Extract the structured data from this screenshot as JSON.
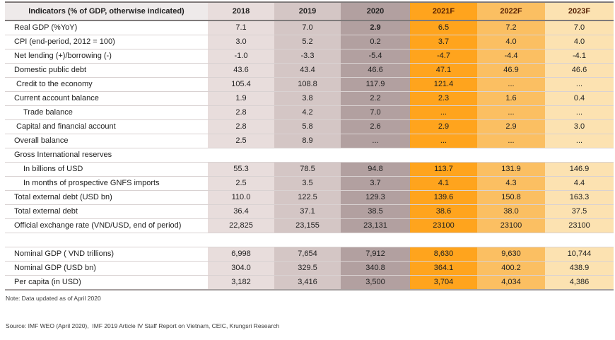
{
  "colors": {
    "c2018": "#e8dddc",
    "c2019": "#d4c6c5",
    "c2020": "#b2a0a0",
    "c2021f": "#ffa41d",
    "c2022f": "#fbbf62",
    "c2023f": "#fce2b1",
    "headerLabelBg": "#eeeaea",
    "forecastText": "#531e02",
    "actualHeaderText": "#262626",
    "lightRule": "#d9d2d2",
    "darkRule": "#7f7a7a"
  },
  "chart_data": {
    "type": "table",
    "title": "Vietnam key economic indicators table",
    "header_label": "Indicators (% of GDP, otherwise indicated)",
    "columns": [
      "2018",
      "2019",
      "2020",
      "2021F",
      "2022F",
      "2023F"
    ],
    "rows": [
      {
        "type": "data",
        "label": "Real GDP (%YoY)",
        "indent": 0,
        "values": [
          "7.1",
          "7.0",
          "2.9",
          "6.5",
          "7.2",
          "7.0"
        ],
        "bold_index": 2
      },
      {
        "type": "data",
        "label": "CPI (end-period, 2012 = 100)",
        "indent": 0,
        "values": [
          "3.0",
          "5.2",
          "0.2",
          "3.7",
          "4.0",
          "4.0"
        ]
      },
      {
        "type": "data",
        "label": "Net lending (+)/borrowing (-)",
        "indent": 0,
        "values": [
          "-1.0",
          "-3.3",
          "-5.4",
          "-4.7",
          "-4.4",
          "-4.1"
        ]
      },
      {
        "type": "data",
        "label": "Domestic public debt",
        "indent": 0,
        "values": [
          "43.6",
          "43.4",
          "46.6",
          "47.1",
          "46.9",
          "46.6"
        ]
      },
      {
        "type": "data",
        "label": "Credit to the economy",
        "indent": 1,
        "values": [
          "105.4",
          "108.8",
          "117.9",
          "121.4",
          "...",
          "..."
        ]
      },
      {
        "type": "data",
        "label": "Current account balance",
        "indent": 0,
        "values": [
          "1.9",
          "3.8",
          "2.2",
          "2.3",
          "1.6",
          "0.4"
        ]
      },
      {
        "type": "data",
        "label": "Trade balance",
        "indent": 2,
        "values": [
          "2.8",
          "4.2",
          "7.0",
          "...",
          "...",
          "..."
        ]
      },
      {
        "type": "data",
        "label": "Capital and financial account",
        "indent": 1,
        "values": [
          "2.8",
          "5.8",
          "2.6",
          "2.9",
          "2.9",
          "3.0"
        ]
      },
      {
        "type": "data",
        "label": "Overall balance",
        "indent": 0,
        "values": [
          "2.5",
          "8.9",
          "...",
          "...",
          "...",
          "..."
        ]
      },
      {
        "type": "section",
        "label": "Gross International reserves",
        "indent": 0
      },
      {
        "type": "data",
        "label": "In billions of USD",
        "indent": 2,
        "values": [
          "55.3",
          "78.5",
          "94.8",
          "113.7",
          "131.9",
          "146.9"
        ]
      },
      {
        "type": "data",
        "label": "In months of prospective GNFS imports",
        "indent": 2,
        "values": [
          "2.5",
          "3.5",
          "3.7",
          "4.1",
          "4.3",
          "4.4"
        ]
      },
      {
        "type": "data",
        "label": "Total external debt (USD bn)",
        "indent": 0,
        "values": [
          "110.0",
          "122.5",
          "129.3",
          "139.6",
          "150.8",
          "163.3"
        ]
      },
      {
        "type": "data",
        "label": "Total external debt",
        "indent": 0,
        "values": [
          "36.4",
          "37.1",
          "38.5",
          "38.6",
          "38.0",
          "37.5"
        ]
      },
      {
        "type": "data",
        "label": "Official exchange rate (VND/USD, end of period)",
        "indent": 0,
        "values": [
          "22,825",
          "23,155",
          "23,131",
          "23100",
          "23100",
          "23100"
        ]
      },
      {
        "type": "spacer"
      },
      {
        "type": "data",
        "label": "Nominal GDP ( VND trillions)",
        "indent": 0,
        "values": [
          "6,998",
          "7,654",
          "7,912",
          "8,630",
          "9,630",
          "10,744"
        ]
      },
      {
        "type": "data",
        "label": "Nominal GDP (USD bn)",
        "indent": 0,
        "values": [
          "304.0",
          "329.5",
          "340.8",
          "364.1",
          "400.2",
          "438.9"
        ]
      },
      {
        "type": "data",
        "label": "Per capita (in USD)",
        "indent": 0,
        "values": [
          "3,182",
          "3,416",
          "3,500",
          "3,704",
          "4,034",
          "4,386"
        ],
        "last": true
      }
    ]
  },
  "notes": {
    "note": "Note: Data updated as of April 2020",
    "source": "Source: IMF WEO (April 2020),  IMF 2019 Article IV Staff Report on Vietnam, CEIC, Krungsri Research"
  }
}
